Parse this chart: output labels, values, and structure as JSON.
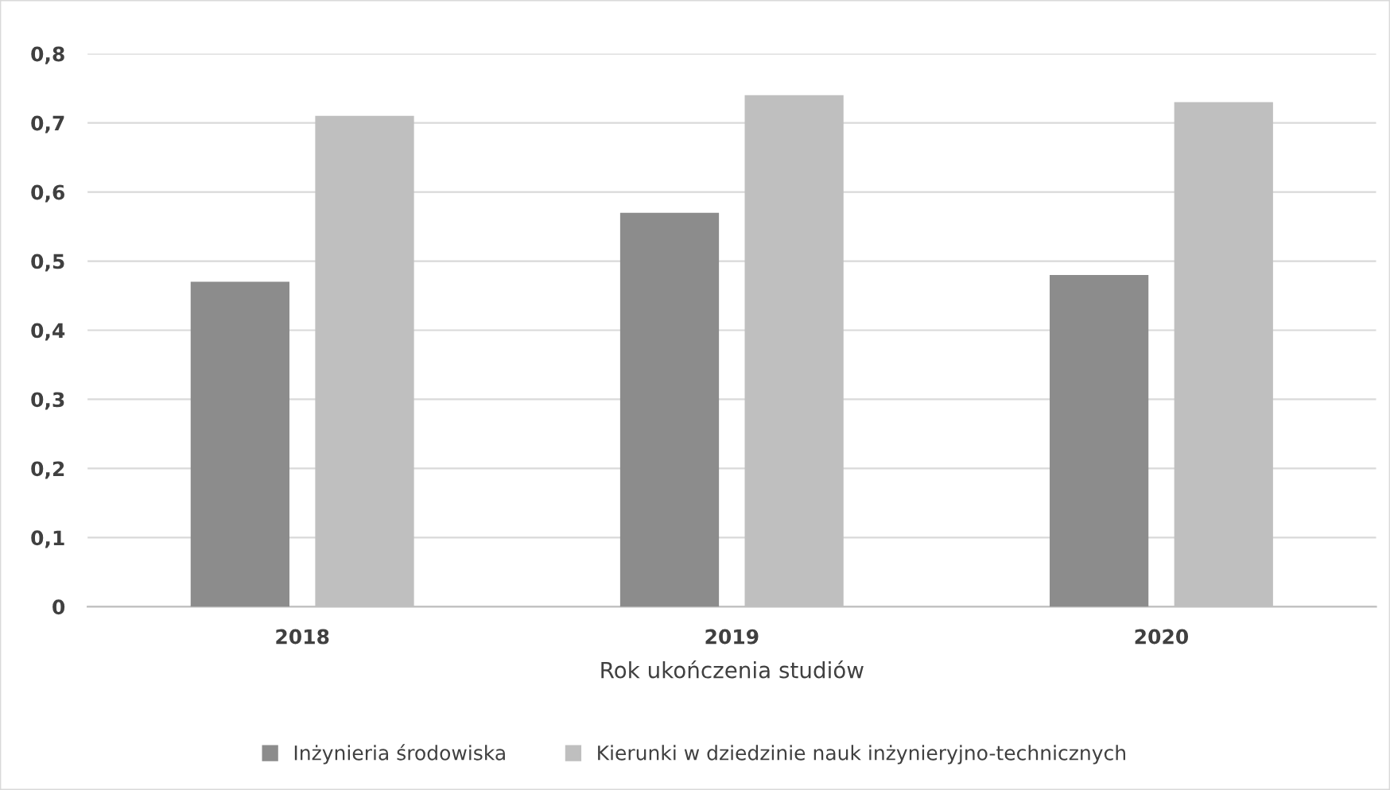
{
  "chart_data": {
    "type": "bar",
    "categories": [
      "2018",
      "2019",
      "2020"
    ],
    "series": [
      {
        "name": "Inżynieria środowiska",
        "color": "#8c8c8c",
        "values": [
          0.47,
          0.57,
          0.48
        ]
      },
      {
        "name": "Kierunki w dziedzinie nauk inżynieryjno-technicznych",
        "color": "#bfbfbf",
        "values": [
          0.71,
          0.74,
          0.73
        ]
      }
    ],
    "xlabel": "Rok ukończenia studiów",
    "ylim": [
      0,
      0.8
    ],
    "yticks": [
      0,
      {
        "value": 0.1,
        "label": "0,1"
      },
      {
        "value": 0.2,
        "label": "0,2"
      },
      {
        "value": 0.3,
        "label": "0,3"
      },
      {
        "value": 0.4,
        "label": "0,4"
      },
      {
        "value": 0.5,
        "label": "0,5"
      },
      {
        "value": 0.6,
        "label": "0,6"
      },
      {
        "value": 0.7,
        "label": "0,7"
      },
      {
        "value": 0.8,
        "label": "0,8"
      }
    ],
    "grid": "y",
    "legend": "bottom"
  }
}
